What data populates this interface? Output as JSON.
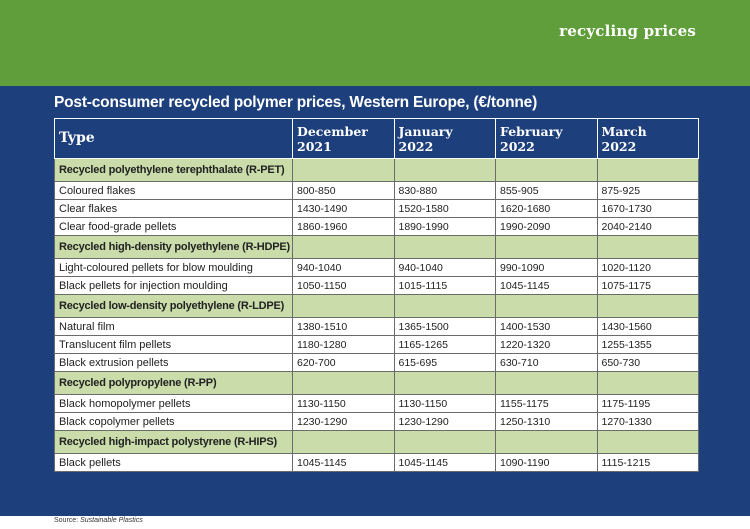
{
  "header": {
    "section_label": "recycling prices"
  },
  "panel": {
    "title": "Post-consumer recycled polymer prices, Western Europe, (€/tonne)"
  },
  "table": {
    "columns": [
      {
        "line1": "Type",
        "line2": ""
      },
      {
        "line1": "December",
        "line2": "2021"
      },
      {
        "line1": "January",
        "line2": "2022"
      },
      {
        "line1": "February",
        "line2": "2022"
      },
      {
        "line1": "March",
        "line2": "2022"
      }
    ],
    "groups": [
      {
        "name": "Recycled polyethylene terephthalate (R-PET)",
        "rows": [
          {
            "type": "Coloured flakes",
            "dec": "800-850",
            "jan": "830-880",
            "feb": "855-905",
            "mar": "875-925"
          },
          {
            "type": "Clear flakes",
            "dec": "1430-1490",
            "jan": "1520-1580",
            "feb": "1620-1680",
            "mar": "1670-1730"
          },
          {
            "type": "Clear food-grade pellets",
            "dec": "1860-1960",
            "jan": "1890-1990",
            "feb": "1990-2090",
            "mar": "2040-2140"
          }
        ]
      },
      {
        "name": "Recycled high-density polyethylene (R-HDPE)",
        "rows": [
          {
            "type": "Light-coloured pellets for blow moulding",
            "dec": "940-1040",
            "jan": "940-1040",
            "feb": "990-1090",
            "mar": "1020-1120"
          },
          {
            "type": "Black pellets for injection moulding",
            "dec": "1050-1150",
            "jan": "1015-1115",
            "feb": "1045-1145",
            "mar": "1075-1175"
          }
        ]
      },
      {
        "name": "Recycled low-density polyethylene (R-LDPE)",
        "rows": [
          {
            "type": "Natural film",
            "dec": "1380-1510",
            "jan": "1365-1500",
            "feb": "1400-1530",
            "mar": "1430-1560"
          },
          {
            "type": "Translucent film pellets",
            "dec": "1180-1280",
            "jan": "1165-1265",
            "feb": "1220-1320",
            "mar": "1255-1355"
          },
          {
            "type": "Black extrusion pellets",
            "dec": "620-700",
            "jan": "615-695",
            "feb": "630-710",
            "mar": "650-730"
          }
        ]
      },
      {
        "name": "Recycled polypropylene (R-PP)",
        "rows": [
          {
            "type": "Black homopolymer pellets",
            "dec": "1130-1150",
            "jan": "1130-1150",
            "feb": "1155-1175",
            "mar": "1175-1195"
          },
          {
            "type": "Black copolymer pellets",
            "dec": "1230-1290",
            "jan": "1230-1290",
            "feb": "1250-1310",
            "mar": "1270-1330"
          }
        ]
      },
      {
        "name": "Recycled high-impact polystyrene (R-HIPS)",
        "rows": [
          {
            "type": "Black pellets",
            "dec": "1045-1145",
            "jan": "1045-1145",
            "feb": "1090-1190",
            "mar": "1115-1215"
          }
        ]
      }
    ]
  },
  "source": {
    "label": "Source:",
    "name": "Sustainable Plastics"
  },
  "colors": {
    "top_green": "#5f9e3a",
    "panel_navy": "#1d3f7c",
    "group_green": "#c9dcaa"
  }
}
